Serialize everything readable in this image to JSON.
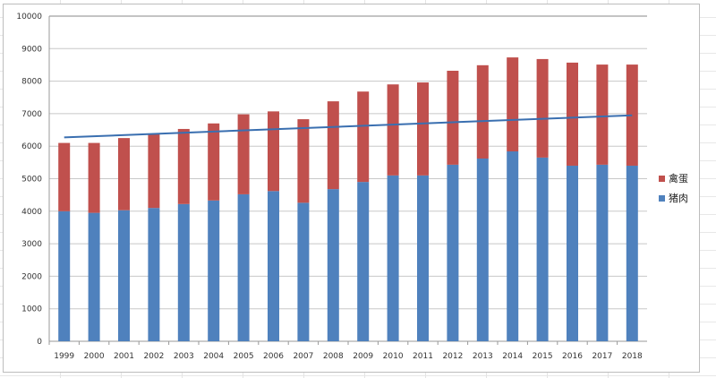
{
  "chart_data": {
    "type": "bar",
    "stacked": true,
    "title": "",
    "xlabel": "",
    "ylabel": "",
    "ylim": [
      0,
      10000
    ],
    "yticks": [
      0,
      1000,
      2000,
      3000,
      4000,
      5000,
      6000,
      7000,
      8000,
      9000,
      10000
    ],
    "grid": true,
    "legend_position": "right",
    "categories": [
      "1999",
      "2000",
      "2001",
      "2002",
      "2003",
      "2004",
      "2005",
      "2006",
      "2007",
      "2008",
      "2009",
      "2010",
      "2011",
      "2012",
      "2013",
      "2014",
      "2015",
      "2016",
      "2017",
      "2018"
    ],
    "series": [
      {
        "name": "猪肉",
        "color": "#4f81bd",
        "values": [
          4000,
          3950,
          4030,
          4100,
          4220,
          4330,
          4520,
          4620,
          4260,
          4680,
          4900,
          5100,
          5100,
          5430,
          5620,
          5840,
          5650,
          5400,
          5430,
          5400
        ]
      },
      {
        "name": "禽蛋",
        "color": "#c0504d",
        "values": [
          2100,
          2150,
          2220,
          2280,
          2310,
          2370,
          2460,
          2450,
          2570,
          2700,
          2780,
          2800,
          2860,
          2890,
          2870,
          2890,
          3030,
          3170,
          3080,
          3110
        ]
      }
    ],
    "trendline": {
      "color": "#3a6fb0",
      "start": 6270,
      "end": 6950
    }
  }
}
